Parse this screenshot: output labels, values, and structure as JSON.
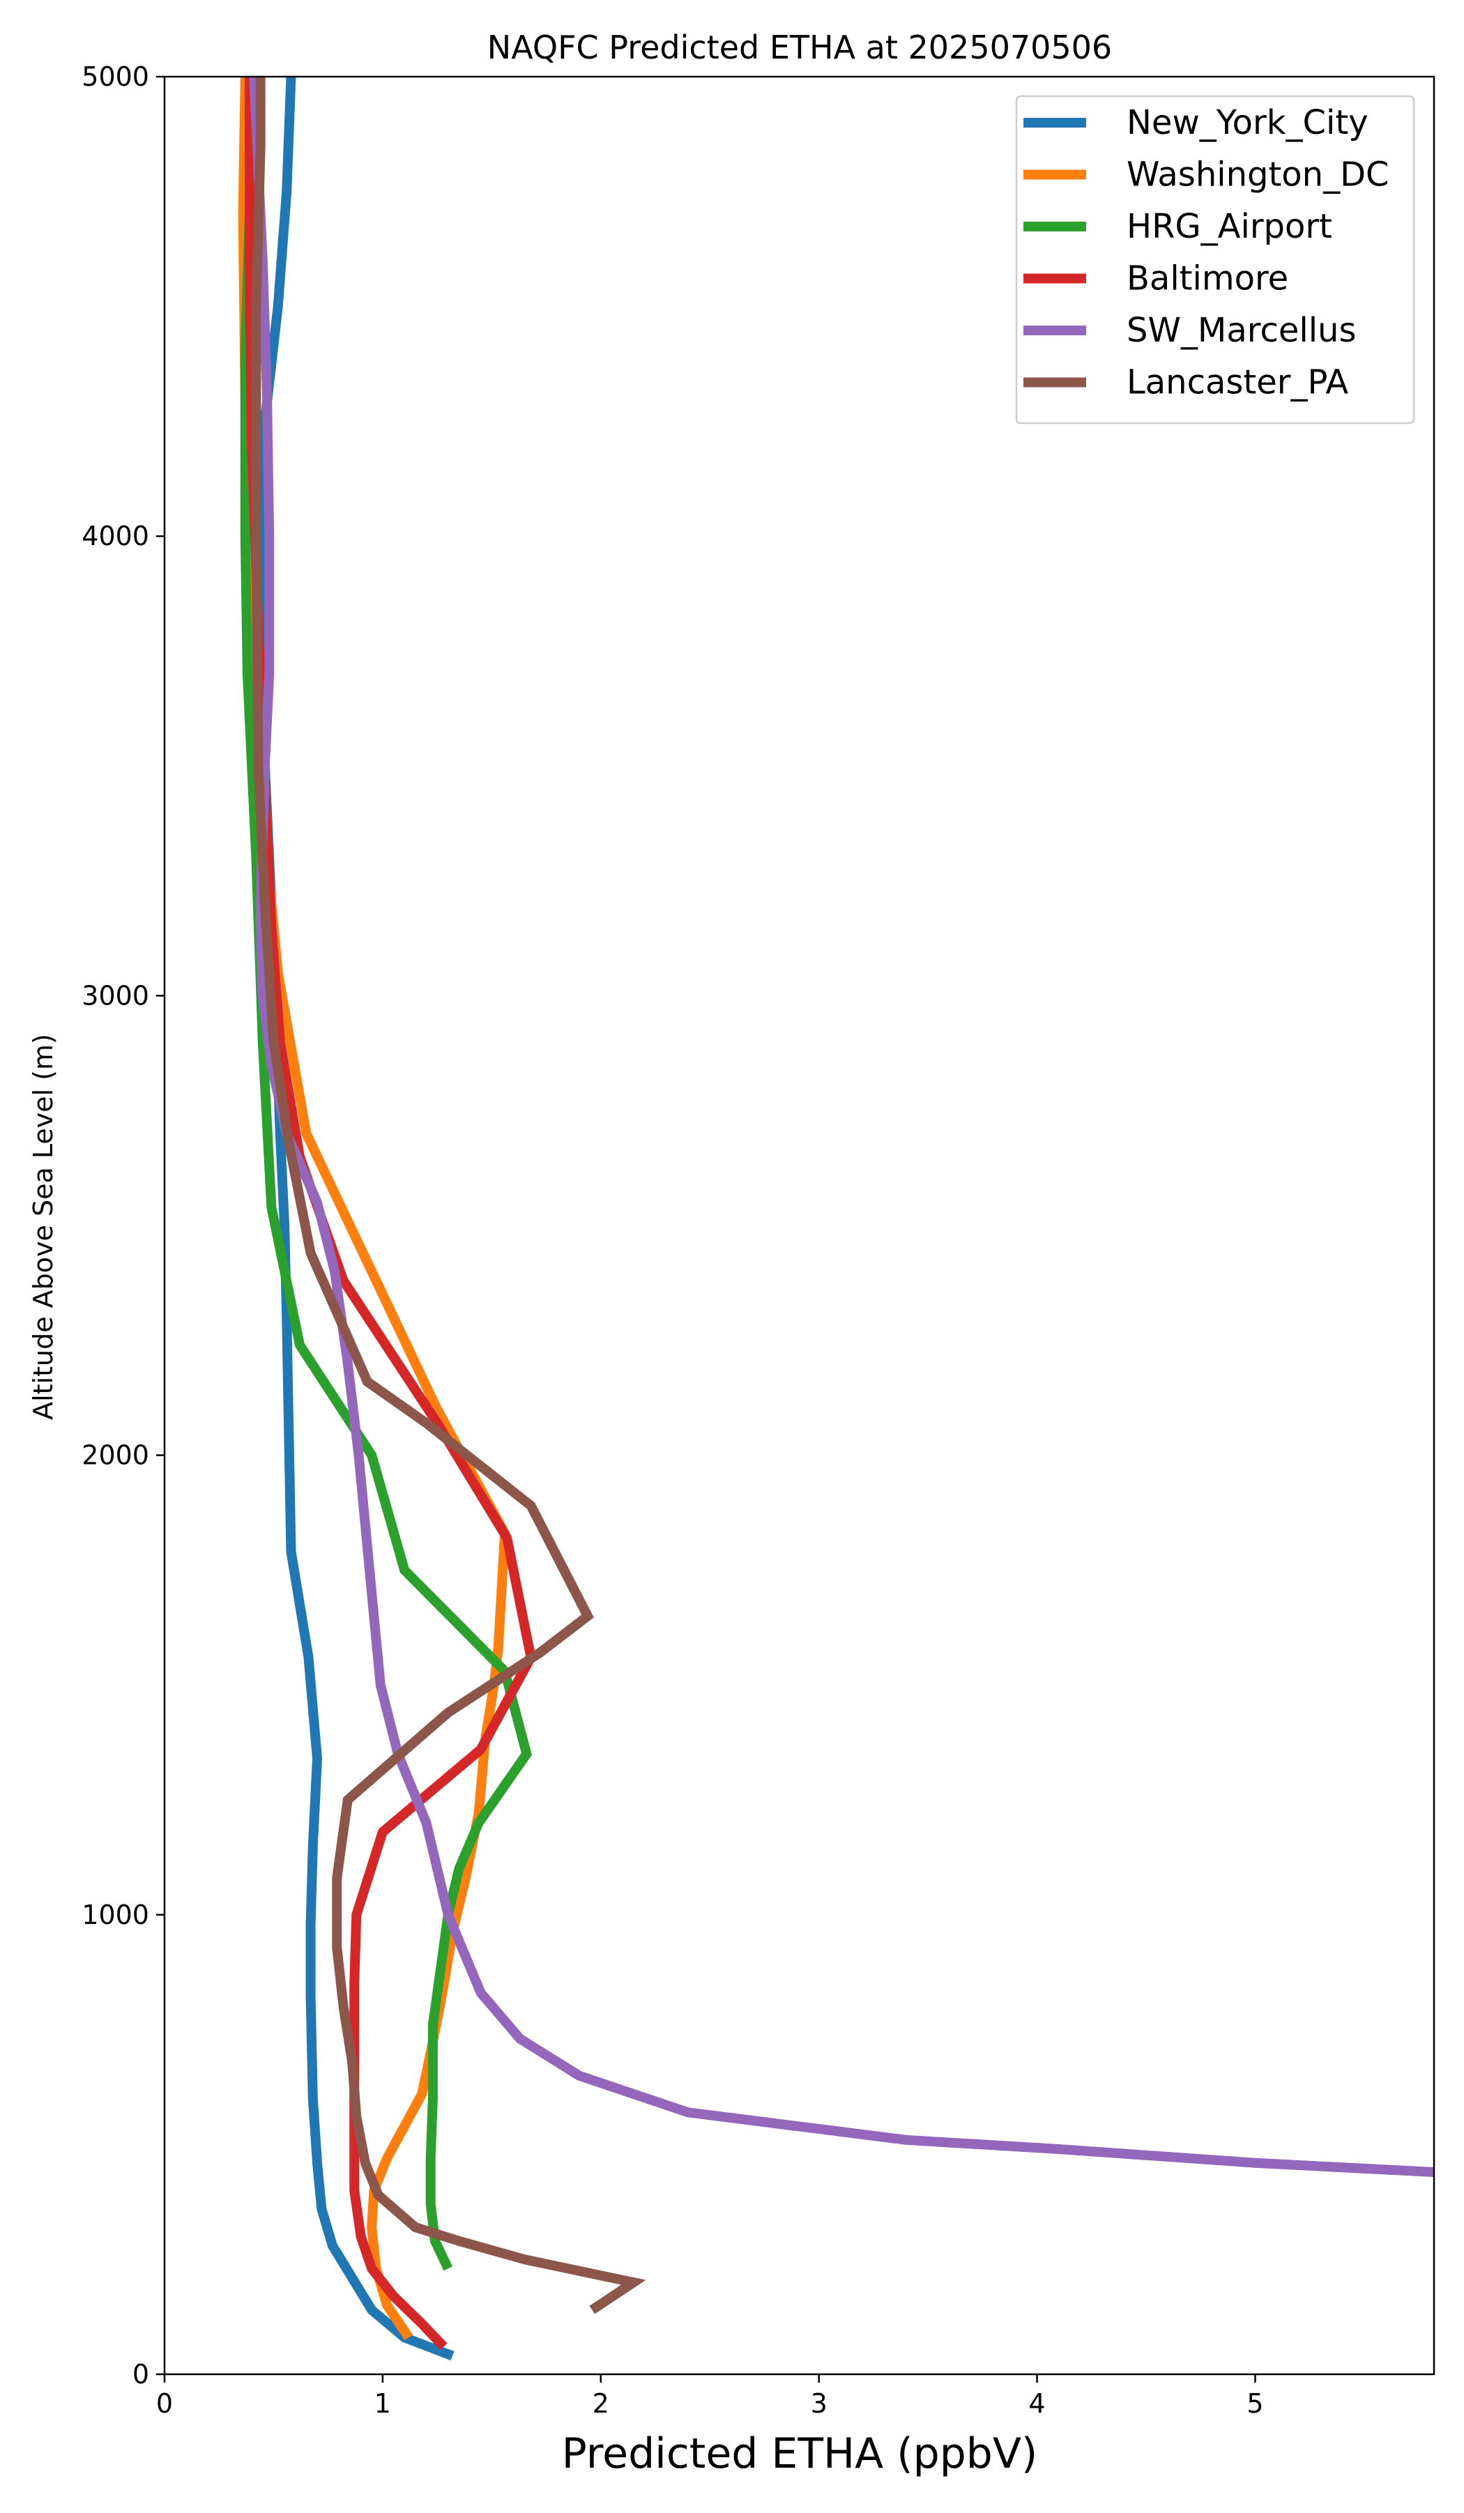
{
  "chart_data": {
    "type": "line",
    "title": "NAQFC Predicted ETHA at 2025070506",
    "xlabel": "Predicted ETHA (ppbV)",
    "ylabel": "Altitude Above Sea Level (m)",
    "xlim": [
      0,
      5.82
    ],
    "ylim": [
      0,
      5000
    ],
    "xticks": [
      0,
      1,
      2,
      3,
      4,
      5
    ],
    "yticks": [
      0,
      1000,
      2000,
      3000,
      4000,
      5000
    ],
    "grid": false,
    "legend_position": "top-right",
    "series": [
      {
        "name": "New_York_City",
        "color": "#1f77b4",
        "points": [
          [
            1.32,
            40
          ],
          [
            1.1,
            80
          ],
          [
            0.95,
            140
          ],
          [
            0.86,
            210
          ],
          [
            0.77,
            280
          ],
          [
            0.72,
            360
          ],
          [
            0.7,
            460
          ],
          [
            0.68,
            600
          ],
          [
            0.67,
            820
          ],
          [
            0.67,
            980
          ],
          [
            0.68,
            1150
          ],
          [
            0.7,
            1340
          ],
          [
            0.66,
            1560
          ],
          [
            0.58,
            1790
          ],
          [
            0.57,
            2050
          ],
          [
            0.56,
            2300
          ],
          [
            0.55,
            2500
          ],
          [
            0.53,
            2700
          ],
          [
            0.5,
            3100
          ],
          [
            0.46,
            3500
          ],
          [
            0.44,
            3900
          ],
          [
            0.46,
            4250
          ],
          [
            0.52,
            4500
          ],
          [
            0.56,
            4750
          ],
          [
            0.58,
            5000
          ]
        ]
      },
      {
        "name": "Washington_DC",
        "color": "#ff7f0e",
        "points": [
          [
            1.12,
            80
          ],
          [
            1.02,
            150
          ],
          [
            0.97,
            230
          ],
          [
            0.95,
            320
          ],
          [
            0.96,
            400
          ],
          [
            1.02,
            470
          ],
          [
            1.1,
            540
          ],
          [
            1.18,
            610
          ],
          [
            1.22,
            700
          ],
          [
            1.27,
            820
          ],
          [
            1.32,
            960
          ],
          [
            1.38,
            1080
          ],
          [
            1.44,
            1220
          ],
          [
            1.47,
            1380
          ],
          [
            1.51,
            1500
          ],
          [
            1.53,
            1580
          ],
          [
            1.56,
            1830
          ],
          [
            1.25,
            2100
          ],
          [
            0.95,
            2400
          ],
          [
            0.65,
            2700
          ],
          [
            0.52,
            3050
          ],
          [
            0.44,
            3450
          ],
          [
            0.4,
            3900
          ],
          [
            0.37,
            4300
          ],
          [
            0.36,
            4700
          ],
          [
            0.37,
            5000
          ]
        ]
      },
      {
        "name": "HRG_Airport",
        "color": "#2ca02c",
        "points": [
          [
            1.3,
            230
          ],
          [
            1.24,
            290
          ],
          [
            1.22,
            370
          ],
          [
            1.22,
            470
          ],
          [
            1.23,
            600
          ],
          [
            1.23,
            760
          ],
          [
            1.3,
            1000
          ],
          [
            1.35,
            1100
          ],
          [
            1.44,
            1200
          ],
          [
            1.66,
            1350
          ],
          [
            1.56,
            1530
          ],
          [
            1.1,
            1750
          ],
          [
            0.95,
            2000
          ],
          [
            0.62,
            2240
          ],
          [
            0.49,
            2540
          ],
          [
            0.45,
            2900
          ],
          [
            0.42,
            3300
          ],
          [
            0.38,
            3700
          ],
          [
            0.37,
            4000
          ],
          [
            0.37,
            4400
          ],
          [
            0.39,
            4700
          ],
          [
            0.4,
            5000
          ]
        ]
      },
      {
        "name": "Baltimore",
        "color": "#d62728",
        "points": [
          [
            1.28,
            60
          ],
          [
            1.18,
            110
          ],
          [
            1.05,
            170
          ],
          [
            0.95,
            230
          ],
          [
            0.9,
            300
          ],
          [
            0.87,
            400
          ],
          [
            0.87,
            500
          ],
          [
            0.87,
            650
          ],
          [
            0.87,
            850
          ],
          [
            0.88,
            1000
          ],
          [
            1.0,
            1180
          ],
          [
            1.45,
            1360
          ],
          [
            1.68,
            1560
          ],
          [
            1.57,
            1820
          ],
          [
            1.25,
            2070
          ],
          [
            0.82,
            2380
          ],
          [
            0.62,
            2650
          ],
          [
            0.53,
            2900
          ],
          [
            0.49,
            3150
          ],
          [
            0.46,
            3450
          ],
          [
            0.43,
            3800
          ],
          [
            0.4,
            4200
          ],
          [
            0.39,
            4600
          ],
          [
            0.39,
            5000
          ]
        ]
      },
      {
        "name": "SW_Marcellus",
        "color": "#9467bd",
        "points": [
          [
            5.82,
            440
          ],
          [
            5.0,
            460
          ],
          [
            4.1,
            490
          ],
          [
            3.4,
            510
          ],
          [
            2.4,
            570
          ],
          [
            1.9,
            650
          ],
          [
            1.63,
            730
          ],
          [
            1.45,
            830
          ],
          [
            1.3,
            1000
          ],
          [
            1.2,
            1200
          ],
          [
            1.07,
            1350
          ],
          [
            0.99,
            1500
          ],
          [
            0.95,
            1700
          ],
          [
            0.89,
            2000
          ],
          [
            0.84,
            2200
          ],
          [
            0.78,
            2400
          ],
          [
            0.7,
            2550
          ],
          [
            0.56,
            2700
          ],
          [
            0.49,
            2850
          ],
          [
            0.45,
            3000
          ],
          [
            0.44,
            3200
          ],
          [
            0.46,
            3500
          ],
          [
            0.48,
            3700
          ],
          [
            0.48,
            4000
          ],
          [
            0.47,
            4300
          ],
          [
            0.45,
            4600
          ],
          [
            0.43,
            4800
          ],
          [
            0.41,
            5000
          ]
        ]
      },
      {
        "name": "Lancaster_PA",
        "color": "#8c564b",
        "points": [
          [
            1.96,
            140
          ],
          [
            2.15,
            200
          ],
          [
            1.65,
            250
          ],
          [
            1.35,
            290
          ],
          [
            1.15,
            320
          ],
          [
            0.98,
            390
          ],
          [
            0.92,
            460
          ],
          [
            0.88,
            560
          ],
          [
            0.86,
            680
          ],
          [
            0.82,
            800
          ],
          [
            0.79,
            930
          ],
          [
            0.79,
            1080
          ],
          [
            0.84,
            1250
          ],
          [
            1.3,
            1440
          ],
          [
            1.72,
            1570
          ],
          [
            1.94,
            1650
          ],
          [
            1.68,
            1890
          ],
          [
            1.2,
            2070
          ],
          [
            0.93,
            2160
          ],
          [
            0.67,
            2440
          ],
          [
            0.57,
            2680
          ],
          [
            0.5,
            2900
          ],
          [
            0.46,
            3200
          ],
          [
            0.43,
            3500
          ],
          [
            0.42,
            4000
          ],
          [
            0.42,
            4500
          ],
          [
            0.44,
            4850
          ],
          [
            0.44,
            5000
          ]
        ]
      }
    ]
  }
}
